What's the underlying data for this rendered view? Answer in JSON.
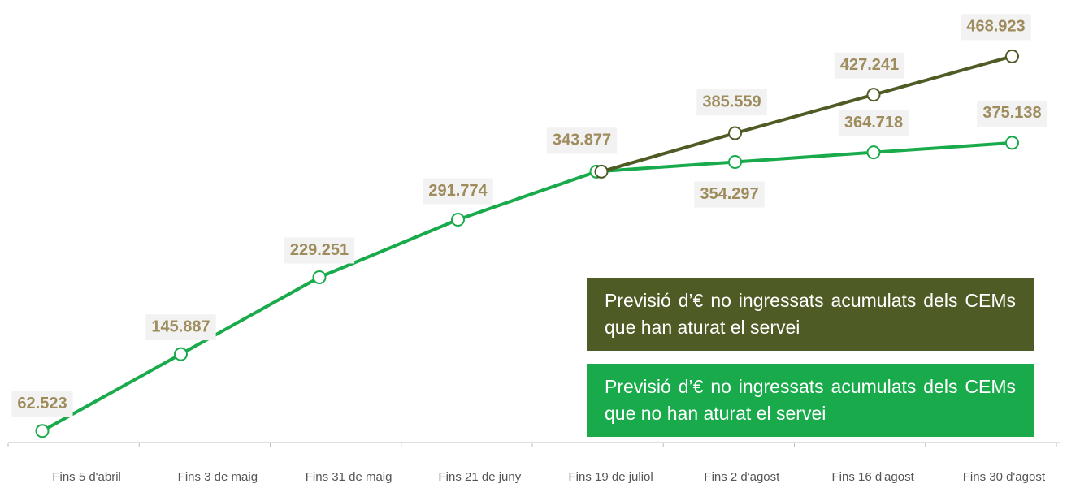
{
  "chart_data": {
    "type": "line",
    "categories": [
      "Fins 5 d'abril",
      "Fins 3 de maig",
      "Fins 31 de maig",
      "Fins 21 de juny",
      "Fins 19 de juliol",
      "Fins 2 d'agost",
      "Fins 16 d'agost",
      "Fins 30 d'agost"
    ],
    "ylim": [
      50000,
      530000
    ],
    "legend": "bottom-right",
    "series": [
      {
        "name": "Previsió d’€ no ingressats acumulats dels CEMs que han aturat el servei",
        "color": "#4e5b24",
        "values": [
          null,
          null,
          null,
          null,
          343877,
          385559,
          427241,
          468923
        ],
        "value_labels": [
          null,
          null,
          null,
          null,
          null,
          "385.559",
          "427.241",
          "468.923"
        ]
      },
      {
        "name": "Previsió d’€ no ingressats acumulats dels CEMs que no han aturat el servei",
        "color": "#19ab4b",
        "values": [
          62523,
          145887,
          229251,
          291774,
          343877,
          354297,
          364718,
          375138
        ],
        "value_labels": [
          "62.523",
          "145.887",
          "229.251",
          "291.774",
          "343.877",
          "354.297",
          "364.718",
          "375.138"
        ]
      }
    ]
  }
}
